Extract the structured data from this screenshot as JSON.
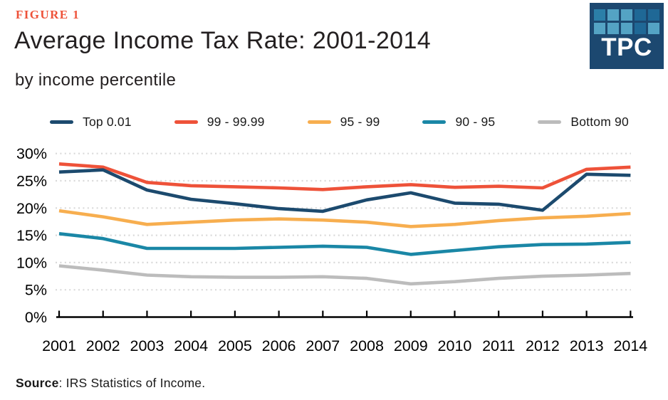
{
  "header": {
    "figure_label": "FIGURE 1",
    "title": "Average Income Tax Rate: 2001-2014",
    "subtitle": "by income percentile"
  },
  "logo": {
    "text": "TPC",
    "background": "#1c4870",
    "palette": {
      "light": "#54a3c4",
      "mid": "#2b7fa8",
      "dark": "#1f6896"
    },
    "squares": [
      [
        "mid",
        "light",
        "light",
        "dark",
        "dark"
      ],
      [
        "light",
        "light",
        "light",
        "dark",
        "light"
      ]
    ]
  },
  "source": {
    "label": "Source",
    "text": ": IRS Statistics of Income."
  },
  "chart_data": {
    "type": "line",
    "title": "Average Income Tax Rate: 2001-2014",
    "subtitle": "by income percentile",
    "x": [
      2001,
      2002,
      2003,
      2004,
      2005,
      2006,
      2007,
      2008,
      2009,
      2010,
      2011,
      2012,
      2013,
      2014
    ],
    "series": [
      {
        "name": "Top 0.01",
        "color": "#1c4a6e",
        "values": [
          26.6,
          27.0,
          23.3,
          21.6,
          20.8,
          19.9,
          19.4,
          21.5,
          22.8,
          20.9,
          20.7,
          19.6,
          26.2,
          26.0
        ]
      },
      {
        "name": "99 - 99.99",
        "color": "#ee5239",
        "values": [
          28.1,
          27.5,
          24.7,
          24.1,
          23.9,
          23.7,
          23.4,
          23.9,
          24.3,
          23.8,
          24.0,
          23.7,
          27.1,
          27.5
        ]
      },
      {
        "name": "95 - 99",
        "color": "#f7ae4f",
        "values": [
          19.5,
          18.4,
          17.0,
          17.4,
          17.8,
          18.0,
          17.8,
          17.4,
          16.6,
          17.0,
          17.7,
          18.2,
          18.5,
          19.0
        ]
      },
      {
        "name": "90 - 95",
        "color": "#1a87a6",
        "values": [
          15.3,
          14.4,
          12.6,
          12.6,
          12.6,
          12.8,
          13.0,
          12.8,
          11.5,
          12.2,
          12.9,
          13.3,
          13.4,
          13.7
        ]
      },
      {
        "name": "Bottom 90",
        "color": "#bcbcbc",
        "values": [
          9.4,
          8.6,
          7.7,
          7.4,
          7.3,
          7.3,
          7.4,
          7.1,
          6.1,
          6.5,
          7.1,
          7.5,
          7.7,
          8.0
        ]
      }
    ],
    "ylim": [
      0,
      30
    ],
    "ytick_step": 5,
    "ytick_suffix": "%",
    "grid": {
      "horizontal": true,
      "style": "dotted",
      "color": "#d9d9d9"
    },
    "axis_color": "#000000",
    "legend_position": "top"
  }
}
